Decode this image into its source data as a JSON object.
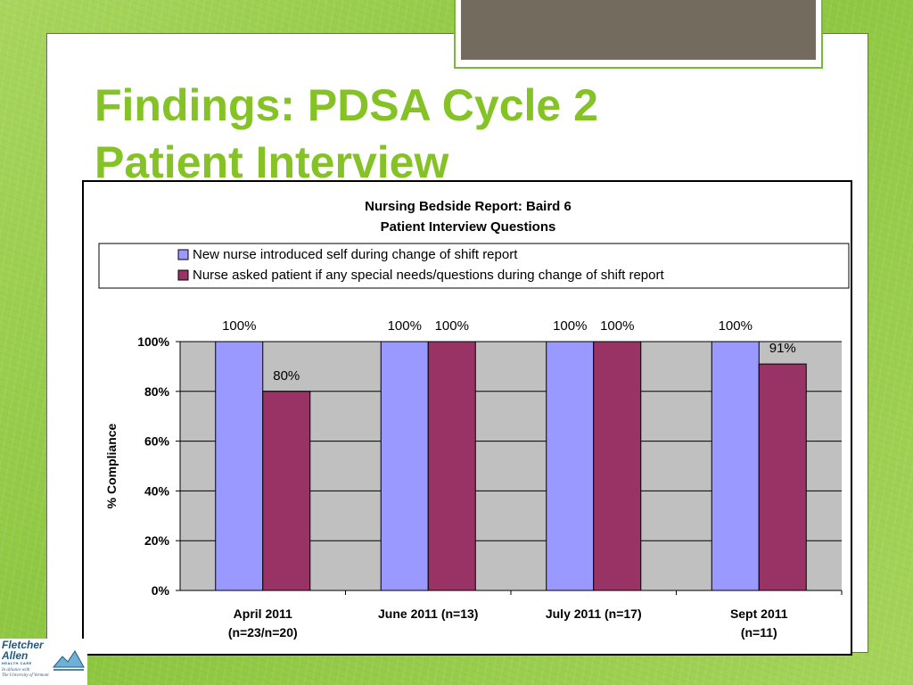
{
  "slide": {
    "title_line1": "Findings:  PDSA Cycle 2",
    "title_line2": "Patient Interview"
  },
  "logo": {
    "name_line1": "Fletcher",
    "name_line2": "Allen",
    "tagline": "HEALTH CARE",
    "alliance_line1": "In alliance with",
    "alliance_line2": "The University of Vermont"
  },
  "colors": {
    "title": "#84c225",
    "series1": "#9999ff",
    "series2": "#993366",
    "plot_bg": "#c0c0c0"
  },
  "chart_data": {
    "type": "bar",
    "title": "Nursing Bedside Report:  Baird 6",
    "subtitle": "Patient Interview Questions",
    "ylabel": "% Compliance",
    "xlabel": "",
    "ylim": [
      0,
      100
    ],
    "yticks": [
      "0%",
      "20%",
      "40%",
      "60%",
      "80%",
      "100%"
    ],
    "ytick_values": [
      0,
      20,
      40,
      60,
      80,
      100
    ],
    "grid": true,
    "legend_position": "top",
    "categories": [
      {
        "line1": "April 2011",
        "line2": "(n=23/n=20)"
      },
      {
        "line1": "June 2011  (n=13)",
        "line2": ""
      },
      {
        "line1": "July 2011  (n=17)",
        "line2": ""
      },
      {
        "line1": "Sept 2011",
        "line2": "(n=11)"
      }
    ],
    "series": [
      {
        "name": "New nurse introduced self during change of shift report",
        "color": "#9999ff",
        "values": [
          100,
          100,
          100,
          100
        ],
        "labels": [
          "100%",
          "100%",
          "100%",
          "100%"
        ]
      },
      {
        "name": "Nurse asked patient if any special needs/questions during change of shift report",
        "color": "#993366",
        "values": [
          80,
          100,
          100,
          91
        ],
        "labels": [
          "80%",
          "100%",
          "100%",
          "91%"
        ]
      }
    ]
  }
}
